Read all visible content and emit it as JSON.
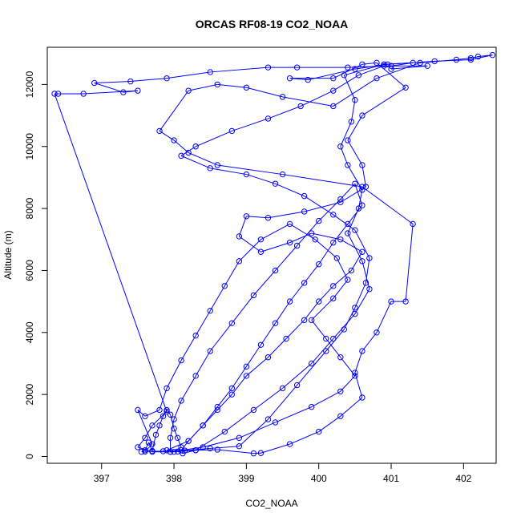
{
  "chart_data": {
    "type": "scatter",
    "title": "ORCAS RF08-19 CO2_NOAA",
    "xlabel": "CO2_NOAA",
    "ylabel": "Altitude (m)",
    "xlim": [
      396.25,
      402.45
    ],
    "ylim": [
      -220,
      13200
    ],
    "x_ticks": [
      397,
      398,
      399,
      400,
      401,
      402
    ],
    "y_ticks": [
      0,
      2000,
      4000,
      6000,
      8000,
      10000,
      12000
    ],
    "grid": false,
    "legend": "none",
    "marker": "open-circle",
    "connected": true,
    "color": "#0000ff",
    "series": [
      {
        "points": [
          [
            397.55,
            150
          ],
          [
            397.6,
            200
          ],
          [
            397.65,
            450
          ],
          [
            397.7,
            180
          ],
          [
            397.75,
            700
          ],
          [
            397.8,
            1000
          ],
          [
            397.85,
            1300
          ],
          [
            397.9,
            1500
          ],
          [
            397.95,
            1350
          ],
          [
            398.0,
            900
          ],
          [
            398.05,
            600
          ],
          [
            398.1,
            300
          ],
          [
            398.0,
            150
          ],
          [
            397.9,
            200
          ],
          [
            398.2,
            500
          ],
          [
            398.4,
            1000
          ],
          [
            398.6,
            1600
          ],
          [
            398.8,
            2200
          ],
          [
            399.0,
            2900
          ],
          [
            399.2,
            3600
          ],
          [
            399.4,
            4300
          ],
          [
            399.6,
            5000
          ],
          [
            399.8,
            5600
          ],
          [
            400.0,
            6200
          ],
          [
            400.2,
            6900
          ],
          [
            400.4,
            7500
          ],
          [
            400.6,
            8100
          ],
          [
            400.5,
            8800
          ],
          [
            400.3,
            8300
          ],
          [
            400.0,
            7600
          ],
          [
            399.7,
            6800
          ],
          [
            399.4,
            6000
          ],
          [
            399.1,
            5200
          ],
          [
            398.8,
            4300
          ],
          [
            398.5,
            3400
          ],
          [
            398.3,
            2600
          ],
          [
            398.1,
            1800
          ],
          [
            398.0,
            1200
          ],
          [
            397.95,
            600
          ],
          [
            397.95,
            150
          ],
          [
            398.3,
            200
          ],
          [
            398.7,
            800
          ],
          [
            399.1,
            1500
          ],
          [
            399.5,
            2200
          ],
          [
            399.9,
            3000
          ],
          [
            400.2,
            3800
          ],
          [
            400.5,
            4600
          ],
          [
            400.7,
            5400
          ],
          [
            400.6,
            6300
          ],
          [
            400.4,
            7200
          ],
          [
            400.55,
            8000
          ],
          [
            400.6,
            8600
          ],
          [
            400.4,
            9400
          ],
          [
            400.3,
            10000
          ],
          [
            400.45,
            10800
          ],
          [
            400.5,
            11500
          ],
          [
            400.35,
            12300
          ],
          [
            400.9,
            12650
          ],
          [
            401.3,
            12700
          ],
          [
            401.0,
            12600
          ],
          [
            400.4,
            12550
          ],
          [
            399.7,
            12550
          ],
          [
            399.3,
            12550
          ],
          [
            398.5,
            12400
          ],
          [
            397.9,
            12200
          ],
          [
            397.4,
            12100
          ],
          [
            396.9,
            12050
          ],
          [
            397.3,
            11750
          ],
          [
            397.5,
            11800
          ],
          [
            396.75,
            11700
          ],
          [
            396.4,
            11700
          ],
          [
            396.35,
            11700
          ],
          [
            397.9,
            1450
          ],
          [
            397.7,
            1000
          ],
          [
            397.6,
            600
          ],
          [
            397.5,
            300
          ],
          [
            397.7,
            150
          ],
          [
            397.95,
            150
          ],
          [
            398.05,
            160
          ],
          [
            398.12,
            100
          ],
          [
            398.3,
            200
          ],
          [
            398.6,
            220
          ],
          [
            399.1,
            100
          ],
          [
            399.2,
            110
          ],
          [
            399.6,
            400
          ],
          [
            400.0,
            800
          ],
          [
            400.3,
            1300
          ],
          [
            400.6,
            1900
          ],
          [
            400.5,
            2700
          ],
          [
            400.6,
            3400
          ],
          [
            400.8,
            4000
          ],
          [
            401.0,
            5000
          ],
          [
            401.2,
            5000
          ],
          [
            401.3,
            7500
          ],
          [
            400.6,
            8700
          ],
          [
            399.5,
            9100
          ],
          [
            398.6,
            9400
          ],
          [
            398.2,
            9800
          ],
          [
            398.0,
            10200
          ],
          [
            397.8,
            10500
          ],
          [
            398.2,
            11800
          ],
          [
            398.6,
            12000
          ],
          [
            399.0,
            11900
          ],
          [
            399.5,
            11600
          ],
          [
            400.2,
            11300
          ],
          [
            400.8,
            12200
          ],
          [
            401.4,
            12700
          ],
          [
            401.9,
            12800
          ],
          [
            402.1,
            12850
          ],
          [
            402.2,
            12900
          ],
          [
            402.4,
            12950
          ],
          [
            402.1,
            12800
          ],
          [
            401.6,
            12750
          ],
          [
            400.95,
            12650
          ],
          [
            400.5,
            12500
          ],
          [
            399.85,
            12150
          ],
          [
            399.6,
            12200
          ],
          [
            400.2,
            12200
          ],
          [
            400.6,
            12650
          ],
          [
            400.8,
            12700
          ],
          [
            401.2,
            11900
          ],
          [
            400.6,
            11000
          ],
          [
            400.4,
            10200
          ],
          [
            400.6,
            9400
          ],
          [
            400.65,
            8700
          ],
          [
            400.3,
            8200
          ],
          [
            399.8,
            7900
          ],
          [
            399.3,
            7700
          ],
          [
            399.0,
            7750
          ],
          [
            398.9,
            7100
          ],
          [
            399.2,
            6600
          ],
          [
            399.6,
            6900
          ],
          [
            399.9,
            7200
          ],
          [
            400.3,
            7000
          ],
          [
            400.6,
            6600
          ],
          [
            400.45,
            6000
          ],
          [
            400.2,
            5500
          ],
          [
            400.0,
            5000
          ],
          [
            399.8,
            4400
          ],
          [
            399.55,
            3800
          ],
          [
            399.3,
            3200
          ],
          [
            399.0,
            2600
          ],
          [
            398.8,
            2000
          ],
          [
            398.6,
            1500
          ],
          [
            398.4,
            1000
          ],
          [
            398.2,
            500
          ],
          [
            398.1,
            200
          ],
          [
            398.4,
            300
          ],
          [
            398.9,
            600
          ],
          [
            399.4,
            1100
          ],
          [
            399.9,
            1600
          ],
          [
            400.3,
            2100
          ],
          [
            400.5,
            2600
          ],
          [
            400.3,
            3200
          ],
          [
            400.1,
            3800
          ],
          [
            399.9,
            4400
          ],
          [
            400.2,
            5100
          ],
          [
            400.4,
            5700
          ],
          [
            400.25,
            6400
          ],
          [
            399.95,
            7000
          ],
          [
            399.6,
            7500
          ],
          [
            399.2,
            7000
          ],
          [
            398.9,
            6300
          ],
          [
            398.7,
            5500
          ],
          [
            398.5,
            4700
          ],
          [
            398.3,
            3900
          ],
          [
            398.1,
            3100
          ],
          [
            397.9,
            2200
          ],
          [
            397.8,
            1500
          ],
          [
            397.6,
            1300
          ],
          [
            397.5,
            1500
          ],
          [
            397.7,
            400
          ],
          [
            397.6,
            160
          ],
          [
            397.85,
            170
          ],
          [
            398.15,
            190
          ],
          [
            398.5,
            260
          ],
          [
            398.9,
            330
          ],
          [
            399.3,
            1200
          ],
          [
            399.7,
            2300
          ],
          [
            400.1,
            3400
          ],
          [
            400.35,
            4100
          ],
          [
            400.5,
            4800
          ],
          [
            400.65,
            5600
          ],
          [
            400.7,
            6400
          ],
          [
            400.5,
            7300
          ],
          [
            400.2,
            7800
          ],
          [
            399.8,
            8400
          ],
          [
            399.4,
            8800
          ],
          [
            399.0,
            9100
          ],
          [
            398.5,
            9300
          ],
          [
            398.1,
            9700
          ],
          [
            398.3,
            10000
          ],
          [
            398.8,
            10500
          ],
          [
            399.3,
            10900
          ],
          [
            399.75,
            11300
          ],
          [
            400.2,
            11800
          ],
          [
            400.55,
            12300
          ],
          [
            400.9,
            12600
          ],
          [
            401.5,
            12600
          ],
          [
            401.0,
            12500
          ]
        ]
      }
    ]
  }
}
